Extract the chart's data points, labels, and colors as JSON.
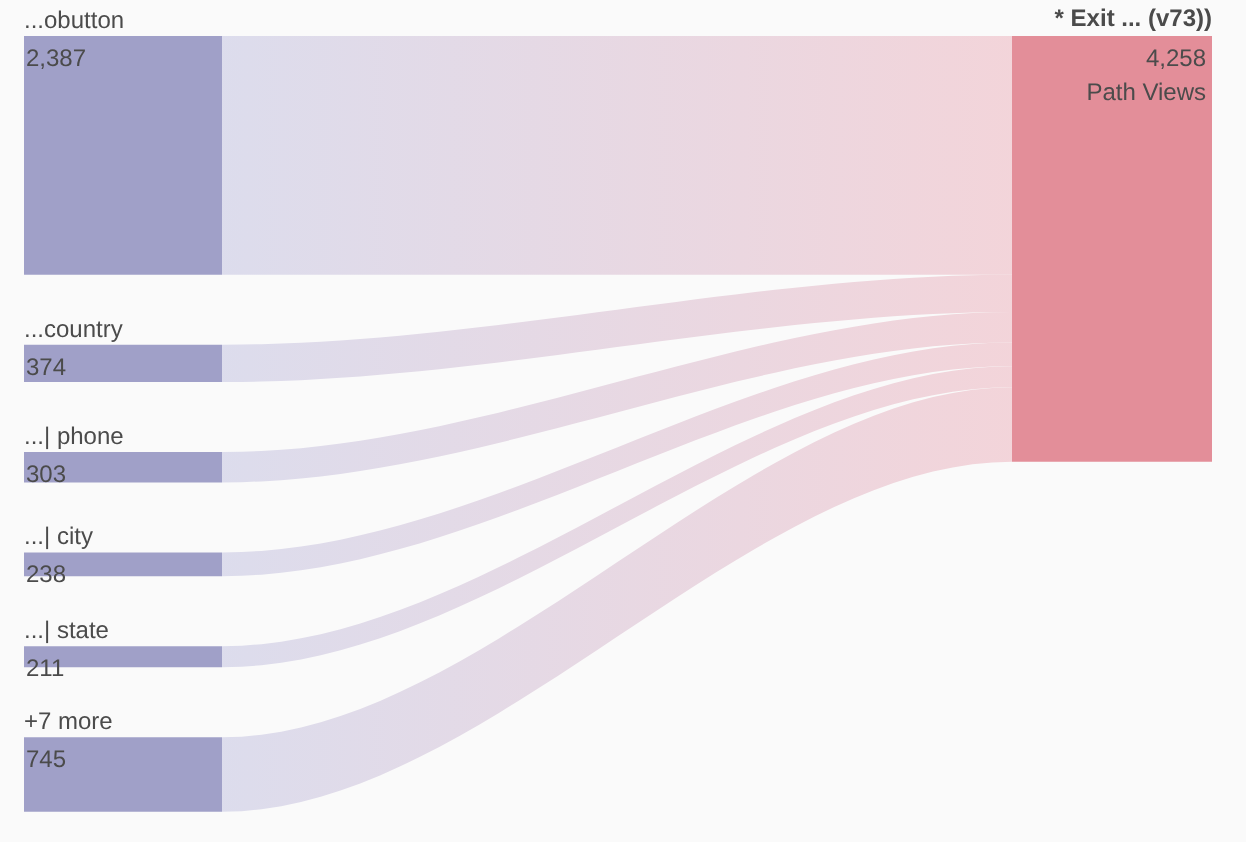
{
  "chart_data": {
    "type": "other",
    "categories": [
      "...obutton",
      "...country",
      "...| phone",
      "...| city",
      "...| state",
      "+7 more"
    ],
    "values": [
      2387,
      374,
      303,
      238,
      211,
      745
    ],
    "colors": [
      "#a0a0c8",
      "#a0a0c8",
      "#a0a0c8",
      "#a0a0c8",
      "#a0a0c8",
      "#a0a0c8"
    ],
    "value_labels": [
      "2,387",
      "374",
      "303",
      "238",
      "211",
      "745"
    ],
    "annotations": [
      "* Exit ... (v73))",
      "4,258",
      "Path Views"
    ]
  }
}
